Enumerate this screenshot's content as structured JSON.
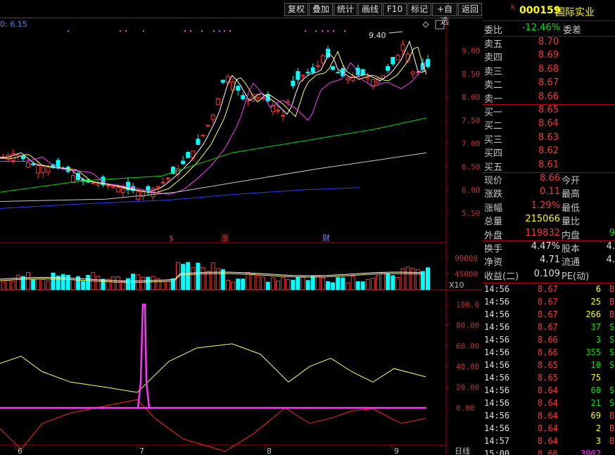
{
  "toolbar": {
    "buttons": [
      "复权",
      "叠加",
      "统计",
      "画线",
      "F10",
      "标记",
      "+自选",
      "返回"
    ]
  },
  "chart": {
    "ma_label": "0: 6.15",
    "price_axis": [
      "9.00",
      "8.50",
      "8.00",
      "7.50",
      "7.00",
      "6.50",
      "6.00",
      "5.50"
    ],
    "high_marker": "9.40",
    "event_labels": [
      {
        "text": "$",
        "color": "#ff3232"
      },
      {
        "text": "涨",
        "color": "#ff3232"
      },
      {
        "text": "财",
        "color": "#6a8cff"
      }
    ],
    "volume_axis": [
      "90000",
      "45000"
    ],
    "volume_unit": "X10",
    "indicator_axis": [
      "100.0",
      "80.00",
      "60.00",
      "40.00",
      "20.00",
      "0.00"
    ],
    "date_labels": [
      "6",
      "7",
      "8",
      "9"
    ],
    "period_label": "日线"
  },
  "chart_data": {
    "type": "candlestick",
    "ylim": [
      5.3,
      9.6
    ],
    "volume_ylim": [
      0,
      100000
    ],
    "indicator_ylim": [
      -40,
      105
    ]
  },
  "quote": {
    "code_prefix": "R",
    "code": "000159",
    "name": "国际实业",
    "weibi_label": "委比",
    "weibi_value": "-12.46%",
    "weicha_label": "委差",
    "sell": [
      {
        "label": "卖五",
        "price": "8.70"
      },
      {
        "label": "卖四",
        "price": "8.69"
      },
      {
        "label": "卖三",
        "price": "8.68"
      },
      {
        "label": "卖二",
        "price": "8.67"
      },
      {
        "label": "卖一",
        "price": "8.66"
      }
    ],
    "buy": [
      {
        "label": "买一",
        "price": "8.65"
      },
      {
        "label": "买二",
        "price": "8.64"
      },
      {
        "label": "买三",
        "price": "8.63"
      },
      {
        "label": "买四",
        "price": "8.62"
      },
      {
        "label": "买五",
        "price": "8.61"
      }
    ],
    "stats": [
      {
        "l1": "现价",
        "v1": "8.66",
        "c1": "red",
        "l2": "今开"
      },
      {
        "l1": "涨跌",
        "v1": "0.11",
        "c1": "red",
        "l2": "最高"
      },
      {
        "l1": "涨幅",
        "v1": "1.29%",
        "c1": "red",
        "l2": "最低"
      },
      {
        "l1": "总量",
        "v1": "215066",
        "c1": "yellow",
        "l2": "量比"
      },
      {
        "l1": "外盘",
        "v1": "119832",
        "c1": "red",
        "l2": "内盘",
        "v2": "9"
      }
    ],
    "stats2": [
      {
        "l1": "换手",
        "v1": "4.47%",
        "l2": "股本",
        "v2": "4."
      },
      {
        "l1": "净资",
        "v1": "4.71",
        "l2": "流通",
        "v2": "4."
      },
      {
        "l1": "收益(二)",
        "v1": "0.109",
        "l2": "PE(动)",
        "v2": ""
      }
    ],
    "ticks": [
      {
        "t": "14:56",
        "p": "8.67",
        "v": "6",
        "s": "B"
      },
      {
        "t": "14:56",
        "p": "8.67",
        "v": "25",
        "s": "B"
      },
      {
        "t": "14:56",
        "p": "8.67",
        "v": "266",
        "s": "B"
      },
      {
        "t": "14:56",
        "p": "8.67",
        "v": "37",
        "s": "S"
      },
      {
        "t": "14:56",
        "p": "8.66",
        "v": "3",
        "s": "S"
      },
      {
        "t": "14:56",
        "p": "8.66",
        "v": "355",
        "s": "S"
      },
      {
        "t": "14:56",
        "p": "8.65",
        "v": "10",
        "s": "S"
      },
      {
        "t": "14:56",
        "p": "8.65",
        "v": "75",
        "s": ""
      },
      {
        "t": "14:56",
        "p": "8.64",
        "v": "60",
        "s": "S"
      },
      {
        "t": "14:56",
        "p": "8.64",
        "v": "21",
        "s": "S"
      },
      {
        "t": "14:56",
        "p": "8.64",
        "v": "69",
        "s": "B"
      },
      {
        "t": "14:56",
        "p": "8.64",
        "v": "2",
        "s": "B"
      },
      {
        "t": "14:57",
        "p": "8.64",
        "v": "3",
        "s": "B"
      },
      {
        "t": "15:00",
        "p": "8.66",
        "v": "3002",
        "s": ""
      }
    ]
  }
}
